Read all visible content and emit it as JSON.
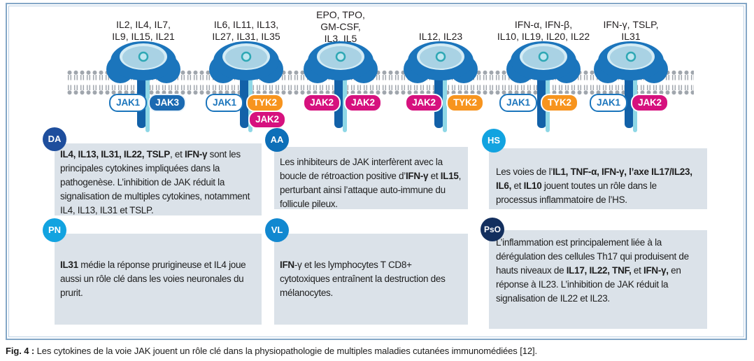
{
  "figure": {
    "caption_segments": [
      {
        "t": "Fig. 4 :",
        "b": true
      },
      {
        "t": " Les cytokines de la voie JAK jouent un rôle clé dans la physiopathologie de multiples maladies cutanées immunomédiées [12].",
        "b": false
      }
    ]
  },
  "receptors": [
    {
      "lines": [
        "IL2, IL4, IL7,",
        "IL9, IL15, IL21"
      ],
      "jaks": [
        {
          "label": "JAK1",
          "variant": "outline"
        },
        {
          "label": "JAK3",
          "variant": "blue"
        }
      ]
    },
    {
      "lines": [
        "IL6, IL11, IL13,",
        "IL27, IL31, IL35"
      ],
      "jaks": [
        {
          "label": "JAK1",
          "variant": "outline"
        },
        {
          "label": "TYK2",
          "variant": "orange"
        },
        {
          "label": "JAK2",
          "variant": "magenta"
        }
      ]
    },
    {
      "lines": [
        "EPO, TPO,",
        "GM-CSF,",
        "IL3, IL5"
      ],
      "jaks": [
        {
          "label": "JAK2",
          "variant": "magenta"
        },
        {
          "label": "JAK2",
          "variant": "magenta"
        }
      ]
    },
    {
      "lines": [
        "IL12, IL23"
      ],
      "jaks": [
        {
          "label": "JAK2",
          "variant": "magenta"
        },
        {
          "label": "TYK2",
          "variant": "orange"
        }
      ]
    },
    {
      "lines": [
        "IFN-α, IFN-β,",
        "IL10, IL19, IL20, IL22"
      ],
      "jaks": [
        {
          "label": "JAK1",
          "variant": "outline"
        },
        {
          "label": "TYK2",
          "variant": "orange"
        }
      ]
    },
    {
      "lines": [
        "IFN-γ, TSLP,",
        "IL31"
      ],
      "jaks": [
        {
          "label": "JAK1",
          "variant": "outline"
        },
        {
          "label": "JAK2",
          "variant": "magenta"
        }
      ]
    }
  ],
  "boxes": [
    {
      "badge": "DA",
      "badge_color": "#1e4e9d",
      "segments": [
        {
          "t": "IL4, IL13, IL31, IL22, TSLP",
          "b": true
        },
        {
          "t": ", et ",
          "b": false
        },
        {
          "t": "IFN-γ",
          "b": true
        },
        {
          "t": " sont les principales cytokines impliquées dans la pathogenèse. L’inhibition de JAK réduit la signalisation de multiples cytokines, notamment IL4, IL13, IL31 et TSLP.",
          "b": false
        }
      ]
    },
    {
      "badge": "AA",
      "badge_color": "#0d6fb8",
      "segments": [
        {
          "t": "Les inhibiteurs de JAK interfèrent avec la boucle de rétroaction positive d’",
          "b": false
        },
        {
          "t": "IFN-γ",
          "b": true
        },
        {
          "t": " et ",
          "b": false
        },
        {
          "t": "IL15",
          "b": true
        },
        {
          "t": ", perturbant ainsi l’attaque auto-immune du follicule pileux.",
          "b": false
        }
      ]
    },
    {
      "badge": "HS",
      "badge_color": "#12a3e0",
      "segments": [
        {
          "t": "Les voies de l’",
          "b": false
        },
        {
          "t": "IL1, TNF-α, IFN-γ, l’axe IL17/IL23, IL6,",
          "b": true
        },
        {
          "t": " et ",
          "b": false
        },
        {
          "t": "IL10",
          "b": true
        },
        {
          "t": " jouent toutes un rôle dans le processus inflammatoire de l’HS.",
          "b": false
        }
      ]
    },
    {
      "badge": "PN",
      "badge_color": "#12a3e0",
      "segments": [
        {
          "t": "IL31",
          "b": true
        },
        {
          "t": " médie la réponse prurigineuse et IL4 joue aussi un rôle clé dans les voies neuronales du prurit.",
          "b": false
        }
      ]
    },
    {
      "badge": "VL",
      "badge_color": "#1288d0",
      "segments": [
        {
          "t": "IFN",
          "b": true
        },
        {
          "t": "-γ et les lymphocytes T CD8+ cytotoxiques entraînent la destruction des mélanocytes.",
          "b": false
        }
      ]
    },
    {
      "badge": "PsO",
      "badge_color": "#132f5e",
      "segments": [
        {
          "t": "L’inflammation est principalement liée à la dérégulation des cellules Th17 qui produisent de hauts niveaux de ",
          "b": false
        },
        {
          "t": "IL17, IL22, TNF,",
          "b": true
        },
        {
          "t": " et ",
          "b": false
        },
        {
          "t": "IFN-γ,",
          "b": true
        },
        {
          "t": " en réponse à IL23. L’inhibition de JAK réduit la signalisation de IL22 et IL23.",
          "b": false
        }
      ]
    }
  ],
  "colors": {
    "receptor_blue": "#1b75bc",
    "receptor_stem_dark": "#1261a8",
    "receptor_stem_light": "#8ed7e6",
    "receptor_ring_teal": "#2fa8b5",
    "membrane_gray": "#a0a6ad",
    "jak1_outline": "#1b75bc",
    "jak3_fill": "#1b6ab2",
    "tyk2_fill": "#f7941e",
    "jak2_fill": "#d6117e",
    "box_background": "#dbe2e9",
    "frame_border": "#84a7c7"
  }
}
